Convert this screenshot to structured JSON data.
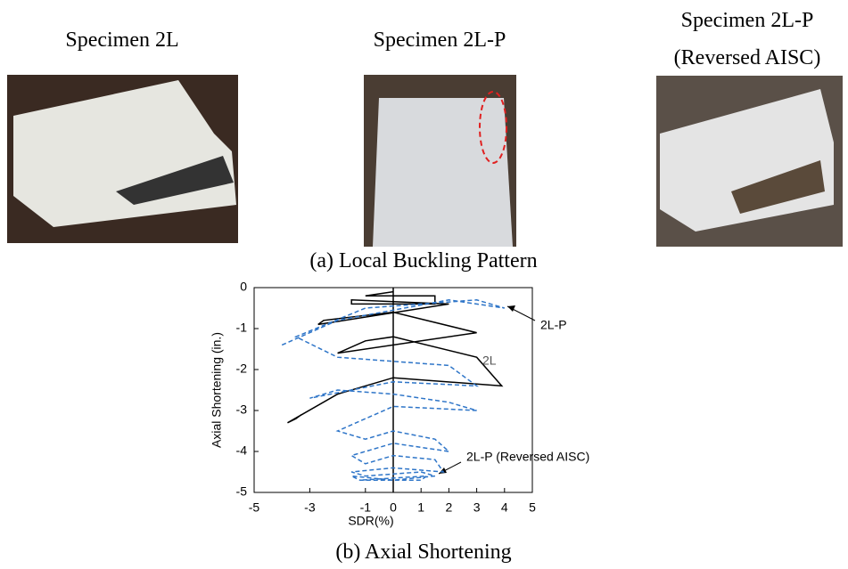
{
  "header": {
    "specimens": [
      "Specimen 2L",
      "Specimen 2L-P",
      "Specimen 2L-P",
      "(Reversed AISC)"
    ],
    "caption_a": "(a) Local Buckling Pattern",
    "caption_b": "(b) Axial Shortening"
  },
  "chart_data": {
    "type": "line",
    "xlabel": "SDR(%)",
    "ylabel": "Axial Shortening (in.)",
    "xlim": [
      -5,
      5
    ],
    "ylim": [
      -5,
      0
    ],
    "xticks": [
      -5,
      -3,
      -1,
      0,
      1,
      2,
      3,
      4,
      5
    ],
    "yticks": [
      0,
      -1,
      -2,
      -3,
      -4,
      -5
    ],
    "annotations": [
      "2L-P",
      "2L",
      "2L-P (Reversed AISC)"
    ],
    "series": [
      {
        "color": "#000000",
        "dash": false,
        "x": [
          0,
          -1,
          1.5,
          1.5,
          -1.5,
          -1.5,
          2,
          -2.7,
          -2.5,
          0,
          3,
          -2,
          -1,
          0,
          3,
          3.9,
          0,
          -2,
          -3.8,
          -3.5,
          -3.3
        ],
        "y": [
          -0.1,
          -0.2,
          -0.2,
          -0.4,
          -0.4,
          -0.3,
          -0.4,
          -0.9,
          -0.8,
          -0.6,
          -1.1,
          -1.6,
          -1.3,
          -1.2,
          -1.7,
          -2.4,
          -2.2,
          -2.6,
          -3.3,
          -3.2,
          -3.1
        ]
      },
      {
        "color": "#2e75c8",
        "dash": true,
        "x": [
          -4,
          -2,
          2,
          4,
          3,
          -1,
          -3.5,
          -2,
          0,
          2,
          3,
          0,
          -3,
          -2,
          0,
          2,
          3,
          0,
          -2,
          -1,
          0,
          1.5,
          2,
          0,
          -1.5,
          -1,
          0,
          1.5,
          1.8,
          0,
          -1.5,
          -1,
          1,
          1.5,
          0,
          -1.5,
          -1.2,
          1,
          1.2,
          -1.2
        ],
        "y": [
          -1.4,
          -0.8,
          -0.3,
          -0.5,
          -0.3,
          -0.5,
          -1.2,
          -1.7,
          -1.8,
          -1.9,
          -2.4,
          -2.3,
          -2.7,
          -2.5,
          -2.6,
          -2.8,
          -3,
          -2.9,
          -3.5,
          -3.7,
          -3.5,
          -3.7,
          -4,
          -3.8,
          -4.1,
          -4.3,
          -4.1,
          -4.2,
          -4.5,
          -4.4,
          -4.5,
          -4.6,
          -4.5,
          -4.6,
          -4.7,
          -4.6,
          -4.7,
          -4.7,
          -4.6,
          -4.7
        ]
      }
    ]
  }
}
